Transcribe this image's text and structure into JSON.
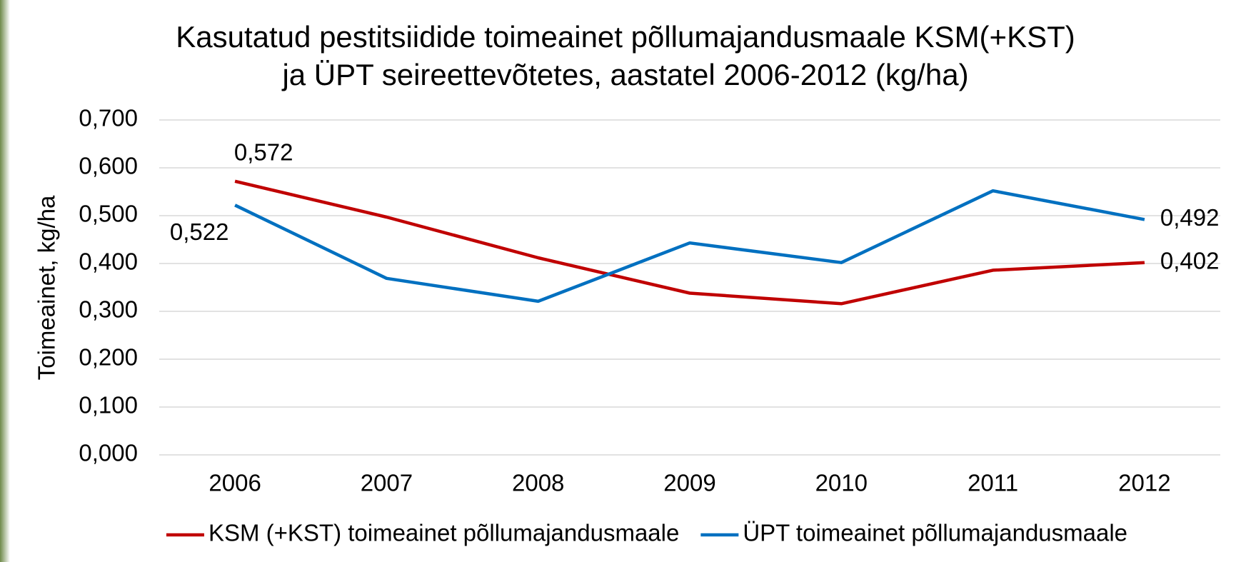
{
  "chart_data": {
    "type": "line",
    "title": [
      "Kasutatud pestitsiidide  toimeainet põllumajandusmaale KSM(+KST)",
      "ja ÜPT seireettevõtetes,  aastatel 2006-2012  (kg/ha)"
    ],
    "y_label": "Toimeainet,  kg/ha",
    "categories": [
      "2006",
      "2007",
      "2008",
      "2009",
      "2010",
      "2011",
      "2012"
    ],
    "series": [
      {
        "name": "KSM (+KST) toimeainet põllumajandusmaale",
        "color": "#c00000",
        "values": [
          0.572,
          0.497,
          0.412,
          0.338,
          0.316,
          0.386,
          0.402
        ],
        "value_labels": [
          "0,572",
          null,
          null,
          null,
          null,
          null,
          "0,402"
        ]
      },
      {
        "name": "ÜPT toimeainet põllumajandusmaale",
        "color": "#0070c0",
        "values": [
          0.522,
          0.369,
          0.321,
          0.443,
          0.402,
          0.552,
          0.492
        ],
        "value_labels": [
          "0,522",
          null,
          null,
          null,
          null,
          null,
          "0,492"
        ]
      }
    ],
    "ylim": [
      0,
      0.7
    ],
    "yticks": [
      {
        "value": 0,
        "label": "0,000"
      },
      {
        "value": 0.1,
        "label": "0,100"
      },
      {
        "value": 0.2,
        "label": "0,200"
      },
      {
        "value": 0.3,
        "label": "0,300"
      },
      {
        "value": 0.4,
        "label": "0,400"
      },
      {
        "value": 0.5,
        "label": "0,500"
      },
      {
        "value": 0.6,
        "label": "0,600"
      },
      {
        "value": 0.7,
        "label": "0,700"
      }
    ],
    "grid": true,
    "legend": "bottom"
  }
}
